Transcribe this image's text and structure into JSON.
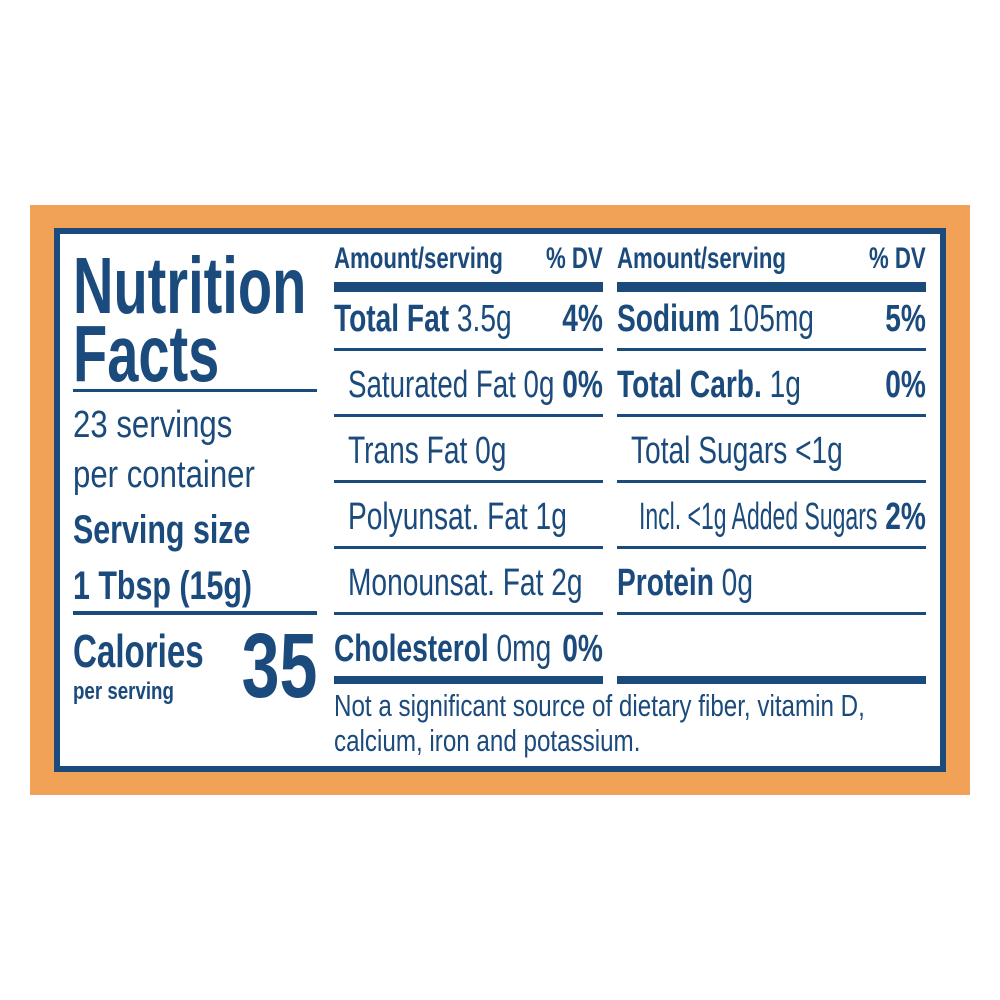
{
  "colors": {
    "border": "#1b4a7c",
    "background": "#f1a256",
    "text": "#1b4a7c"
  },
  "title_line1": "Nutrition",
  "title_line2": "Facts",
  "servings_line1": "23 servings",
  "servings_line2": "per container",
  "serving_size_label": "Serving size",
  "serving_size_value": "1 Tbsp (15g)",
  "calories_label": "Calories",
  "calories_sub": "per serving",
  "calories_value": "35",
  "left_table": {
    "header_amount": "Amount/serving",
    "header_dv": "% DV",
    "rows": [
      {
        "bold": "Total Fat",
        "amount": "3.5g",
        "dv": "4%"
      },
      {
        "bold": "",
        "amount": "Saturated Fat 0g",
        "dv": "0%"
      },
      {
        "bold": "",
        "amount": "Trans Fat 0g",
        "dv": ""
      },
      {
        "bold": "",
        "amount": "Polyunsat. Fat 1g",
        "dv": ""
      },
      {
        "bold": "",
        "amount": "Monounsat. Fat 2g",
        "dv": ""
      },
      {
        "bold": "Cholesterol",
        "amount": "0mg",
        "dv": "0%"
      }
    ]
  },
  "right_table": {
    "header_amount": "Amount/serving",
    "header_dv": "% DV",
    "rows": [
      {
        "bold": "Sodium",
        "amount": "105mg",
        "dv": "5%"
      },
      {
        "bold": "Total Carb.",
        "amount": "1g",
        "dv": "0%"
      },
      {
        "bold": "",
        "amount": "Total Sugars <1g",
        "dv": ""
      },
      {
        "bold": "",
        "amount": "Incl. <1g Added Sugars",
        "dv": "2%"
      },
      {
        "bold": "Protein",
        "amount": "0g",
        "dv": ""
      },
      {
        "bold": "",
        "amount": "",
        "dv": ""
      }
    ]
  },
  "footnote_line1": "Not a significant source of dietary fiber, vitamin D,",
  "footnote_line2": "calcium, iron and potassium."
}
